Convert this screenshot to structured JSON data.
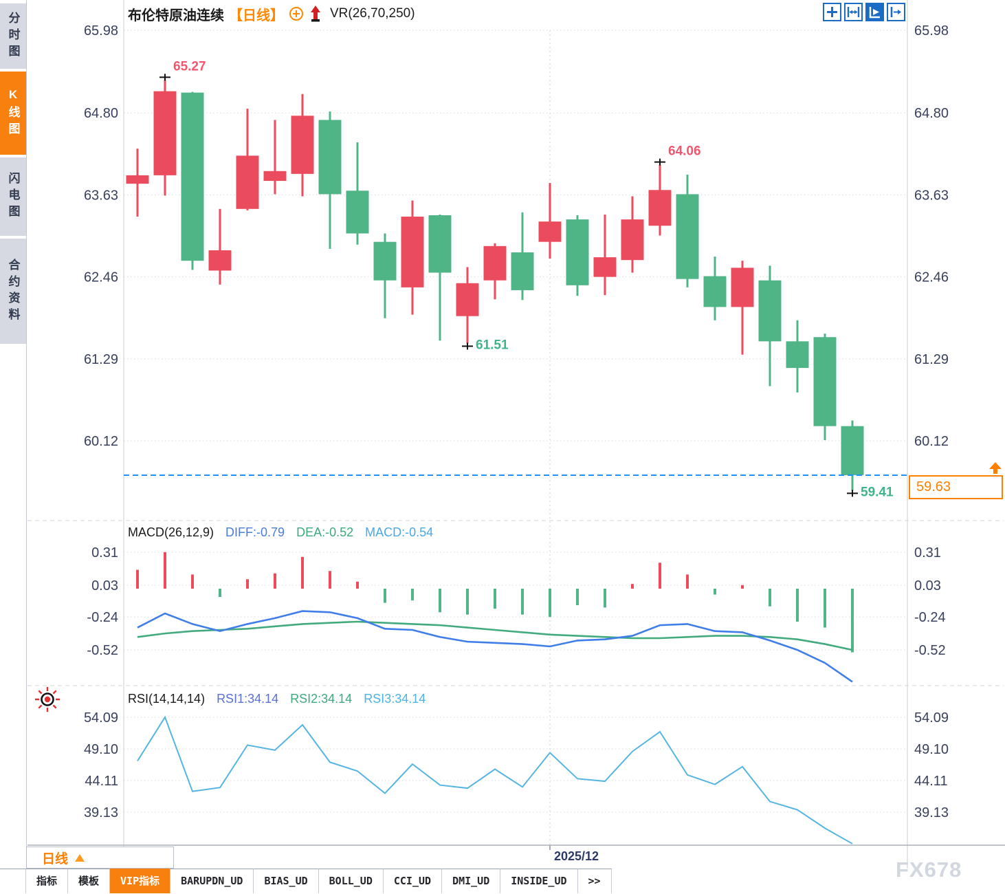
{
  "header": {
    "symbol": "布伦特原油连续",
    "period_tag": "【日线】",
    "indicator": "VR(26,70,250)"
  },
  "sidebar": {
    "items": [
      {
        "label": "分时图",
        "active": false
      },
      {
        "label": "K线图",
        "active": true
      },
      {
        "label": "闪电图",
        "active": false
      },
      {
        "label": "合约资料",
        "active": false
      }
    ]
  },
  "toolbar": {
    "icons": [
      "move-crosshair",
      "zoom-horizontal",
      "auto-scale-active",
      "go-to-latest"
    ]
  },
  "current_price_label": "59.63",
  "x_axis": {
    "month_label": "2025/12"
  },
  "macd_header": {
    "title": "MACD(26,12,9)",
    "diff": "DIFF:-0.79",
    "dea": "DEA:-0.52",
    "macd": "MACD:-0.54"
  },
  "rsi_header": {
    "title": "RSI(14,14,14)",
    "rsi1": "RSI1:34.14",
    "rsi2": "RSI2:34.14",
    "rsi3": "RSI3:34.14"
  },
  "bottom": {
    "period_button": "日线",
    "watermark": "FX678",
    "tabs": [
      {
        "label": "指标",
        "active": false
      },
      {
        "label": "模板",
        "active": false
      },
      {
        "label": "VIP指标",
        "active": true
      },
      {
        "label": "BARUPDN_UD",
        "active": false
      },
      {
        "label": "BIAS_UD",
        "active": false
      },
      {
        "label": "BOLL_UD",
        "active": false
      },
      {
        "label": "CCI_UD",
        "active": false
      },
      {
        "label": "DMI_UD",
        "active": false
      },
      {
        "label": "INSIDE_UD",
        "active": false
      },
      {
        "label": ">>",
        "active": false
      }
    ]
  },
  "colors": {
    "up": "#ea4c5d",
    "down": "#4fb586",
    "diff_line": "#3f7de8",
    "dea_line": "#42ab7e",
    "rsi_line": "#55b5e2",
    "price_line": "#1e90ff",
    "accent_orange": "#ff7f00",
    "annotation_red": "#f2566e",
    "annotation_green": "#3eb489",
    "axis_text": "#38405c",
    "grid": "#dadada",
    "marker": "#111111"
  },
  "chart_data": {
    "type": "candlestick",
    "title": "布伦特原油连续 日线 (Brent crude oil continuous, daily)",
    "price_axis_ticks": [
      65.98,
      64.8,
      63.63,
      62.46,
      61.29,
      60.12
    ],
    "current_price": 59.63,
    "month_boundary_index": 15,
    "candles": [
      {
        "o": 63.79,
        "h": 64.29,
        "l": 63.32,
        "c": 63.91
      },
      {
        "o": 63.91,
        "h": 65.27,
        "l": 63.62,
        "c": 65.11
      },
      {
        "o": 65.09,
        "h": 65.1,
        "l": 62.56,
        "c": 62.69
      },
      {
        "o": 62.55,
        "h": 63.43,
        "l": 62.35,
        "c": 62.84
      },
      {
        "o": 63.43,
        "h": 64.86,
        "l": 63.41,
        "c": 64.19
      },
      {
        "o": 63.83,
        "h": 64.7,
        "l": 63.64,
        "c": 63.97
      },
      {
        "o": 63.93,
        "h": 65.07,
        "l": 63.61,
        "c": 64.76
      },
      {
        "o": 64.7,
        "h": 64.82,
        "l": 62.86,
        "c": 63.64
      },
      {
        "o": 63.69,
        "h": 64.38,
        "l": 62.92,
        "c": 63.08
      },
      {
        "o": 62.96,
        "h": 63.08,
        "l": 61.87,
        "c": 62.41
      },
      {
        "o": 62.31,
        "h": 63.55,
        "l": 61.92,
        "c": 63.32
      },
      {
        "o": 63.34,
        "h": 63.35,
        "l": 61.55,
        "c": 62.52
      },
      {
        "o": 61.9,
        "h": 62.6,
        "l": 61.51,
        "c": 62.37
      },
      {
        "o": 62.41,
        "h": 62.94,
        "l": 62.14,
        "c": 62.9
      },
      {
        "o": 62.81,
        "h": 63.38,
        "l": 62.13,
        "c": 62.27
      },
      {
        "o": 62.96,
        "h": 63.8,
        "l": 62.72,
        "c": 63.25
      },
      {
        "o": 63.28,
        "h": 63.34,
        "l": 62.19,
        "c": 62.34
      },
      {
        "o": 62.46,
        "h": 63.35,
        "l": 62.2,
        "c": 62.74
      },
      {
        "o": 62.7,
        "h": 63.61,
        "l": 62.52,
        "c": 63.28
      },
      {
        "o": 63.19,
        "h": 64.06,
        "l": 63.05,
        "c": 63.7
      },
      {
        "o": 63.64,
        "h": 63.92,
        "l": 62.31,
        "c": 62.43
      },
      {
        "o": 62.47,
        "h": 62.75,
        "l": 61.84,
        "c": 62.03
      },
      {
        "o": 62.03,
        "h": 62.69,
        "l": 61.35,
        "c": 62.59
      },
      {
        "o": 62.41,
        "h": 62.62,
        "l": 60.9,
        "c": 61.54
      },
      {
        "o": 61.54,
        "h": 61.84,
        "l": 60.81,
        "c": 61.16
      },
      {
        "o": 61.6,
        "h": 61.65,
        "l": 60.13,
        "c": 60.33
      },
      {
        "o": 60.33,
        "h": 60.41,
        "l": 59.41,
        "c": 59.63
      }
    ],
    "annotations": [
      {
        "label": "65.27",
        "candle_index": 1,
        "position": "high"
      },
      {
        "label": "64.06",
        "candle_index": 19,
        "position": "high"
      },
      {
        "label": "61.51",
        "candle_index": 12,
        "position": "low"
      },
      {
        "label": "59.41",
        "candle_index": 26,
        "position": "low"
      }
    ],
    "macd": {
      "axis_ticks": [
        0.31,
        0.03,
        -0.24,
        -0.52
      ],
      "hist": [
        0.16,
        0.31,
        0.12,
        -0.07,
        0.08,
        0.13,
        0.27,
        0.15,
        0.06,
        -0.12,
        -0.1,
        -0.2,
        -0.22,
        -0.17,
        -0.22,
        -0.24,
        -0.14,
        -0.16,
        0.04,
        0.22,
        0.12,
        -0.05,
        0.03,
        -0.15,
        -0.28,
        -0.33,
        -0.54
      ],
      "diff": [
        -0.33,
        -0.21,
        -0.3,
        -0.36,
        -0.3,
        -0.25,
        -0.19,
        -0.2,
        -0.25,
        -0.34,
        -0.35,
        -0.41,
        -0.45,
        -0.46,
        -0.47,
        -0.49,
        -0.44,
        -0.43,
        -0.4,
        -0.31,
        -0.3,
        -0.36,
        -0.37,
        -0.44,
        -0.52,
        -0.63,
        -0.79
      ],
      "dea": [
        -0.41,
        -0.38,
        -0.36,
        -0.35,
        -0.34,
        -0.32,
        -0.3,
        -0.29,
        -0.28,
        -0.29,
        -0.3,
        -0.31,
        -0.33,
        -0.35,
        -0.37,
        -0.39,
        -0.4,
        -0.41,
        -0.42,
        -0.42,
        -0.41,
        -0.4,
        -0.4,
        -0.41,
        -0.43,
        -0.47,
        -0.52
      ]
    },
    "rsi": {
      "axis_ticks": [
        54.09,
        49.1,
        44.11,
        39.13
      ],
      "values": [
        47.2,
        54.1,
        42.4,
        43.0,
        49.7,
        48.9,
        52.9,
        47.0,
        45.6,
        42.1,
        46.7,
        43.4,
        42.9,
        45.9,
        43.1,
        48.5,
        44.4,
        44.0,
        48.7,
        51.8,
        45.0,
        43.5,
        46.3,
        40.8,
        39.5,
        36.6,
        34.14
      ]
    }
  }
}
